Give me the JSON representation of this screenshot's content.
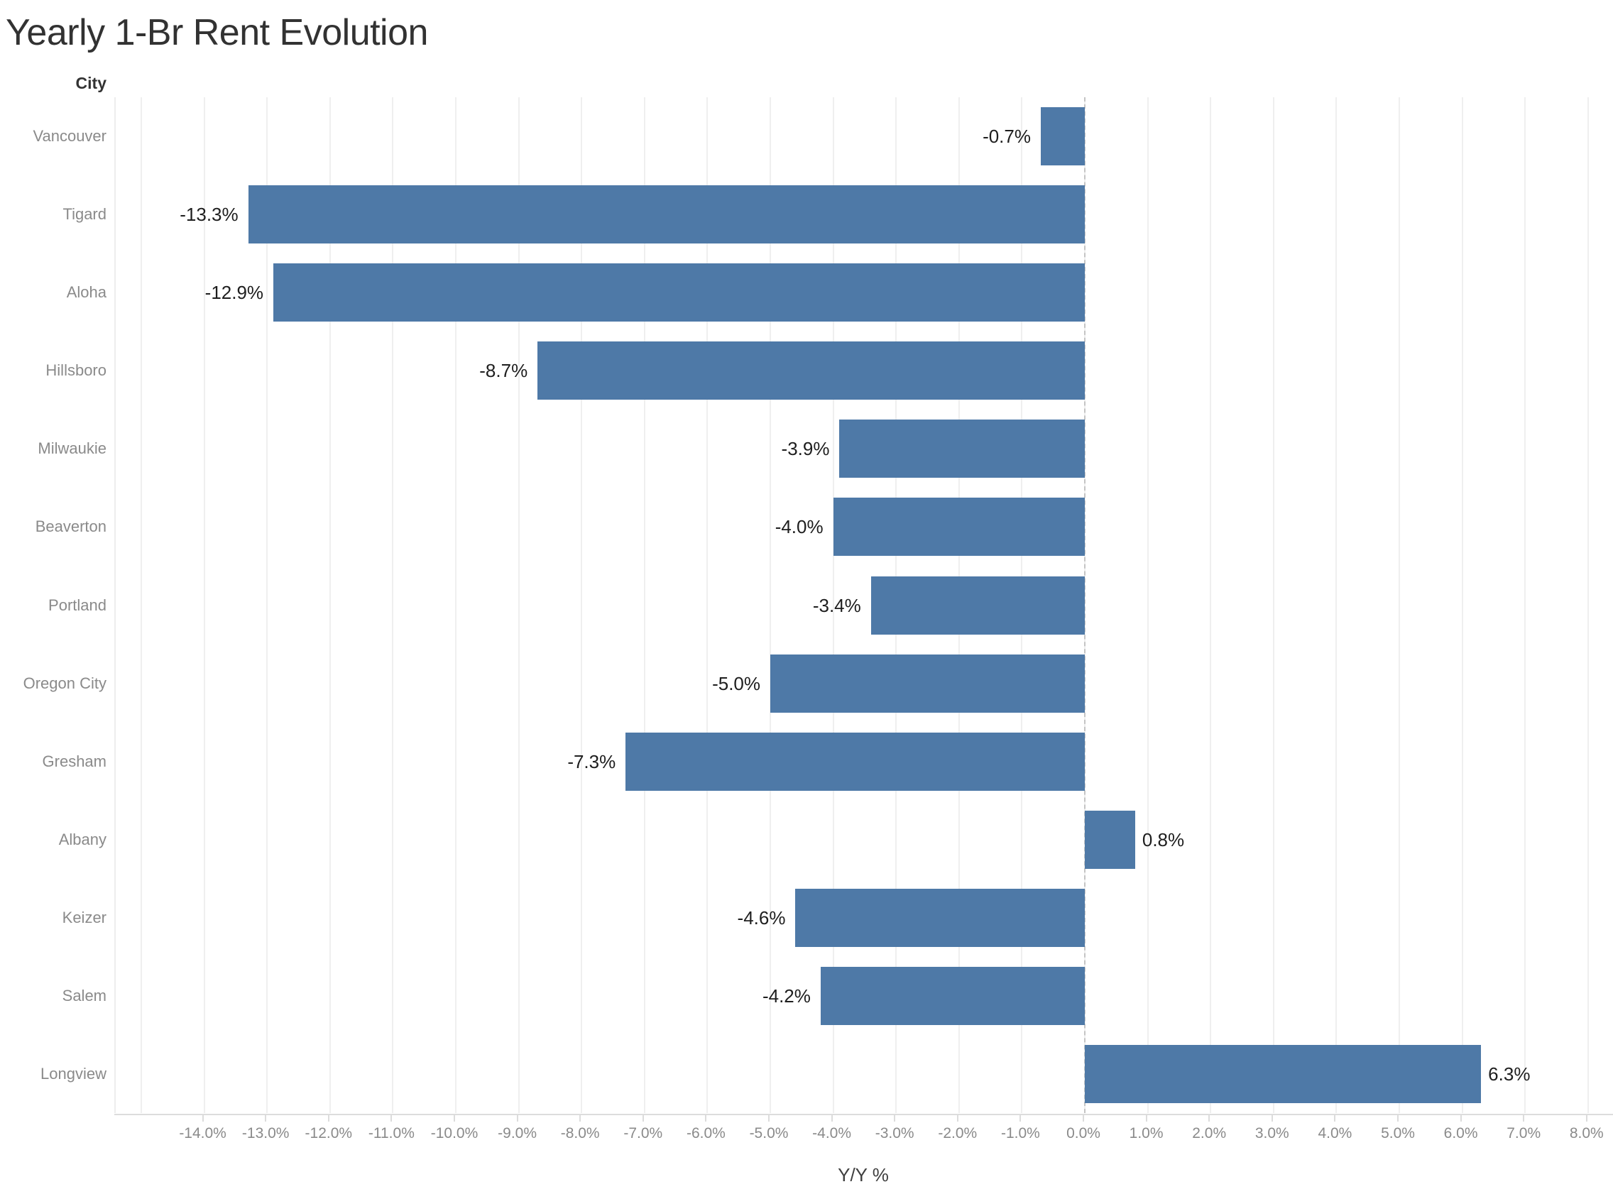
{
  "chart_data": {
    "type": "bar",
    "orientation": "horizontal",
    "title": "Yearly 1-Br Rent Evolution",
    "category_header": "City",
    "categories": [
      "Vancouver",
      "Tigard",
      "Aloha",
      "Hillsboro",
      "Milwaukie",
      "Beaverton",
      "Portland",
      "Oregon City",
      "Gresham",
      "Albany",
      "Keizer",
      "Salem",
      "Longview"
    ],
    "values": [
      -0.7,
      -13.3,
      -12.9,
      -8.7,
      -3.9,
      -4.0,
      -3.4,
      -5.0,
      -7.3,
      0.8,
      -4.6,
      -4.2,
      6.3
    ],
    "value_labels": [
      "-0.7%",
      "-13.3%",
      "-12.9%",
      "-8.7%",
      "-3.9%",
      "-4.0%",
      "-3.4%",
      "-5.0%",
      "-7.3%",
      "0.8%",
      "-4.6%",
      "-4.2%",
      "6.3%"
    ],
    "xlabel": "Y/Y %",
    "x_tick_values": [
      -14,
      -13,
      -12,
      -11,
      -10,
      -9,
      -8,
      -7,
      -6,
      -5,
      -4,
      -3,
      -2,
      -1,
      0,
      1,
      2,
      3,
      4,
      5,
      6,
      7,
      8
    ],
    "x_tick_labels": [
      "-14.0%",
      "-13.0%",
      "-12.0%",
      "-11.0%",
      "-10.0%",
      "-9.0%",
      "-8.0%",
      "-7.0%",
      "-6.0%",
      "-5.0%",
      "-4.0%",
      "-3.0%",
      "-2.0%",
      "-1.0%",
      "0.0%",
      "1.0%",
      "2.0%",
      "3.0%",
      "4.0%",
      "5.0%",
      "6.0%",
      "7.0%",
      "8.0%"
    ],
    "xlim": [
      -15.4,
      8.4
    ],
    "gridline_step": 1,
    "grid": true,
    "legend": "none",
    "zero_line_style": "dashed",
    "bar_color": "#4e79a7",
    "gridline_color": "#efefef",
    "zero_line_color": "#c4c4c4",
    "axis_text_color": "#8a8a8a",
    "label_text_color": "#1e1e1e"
  }
}
